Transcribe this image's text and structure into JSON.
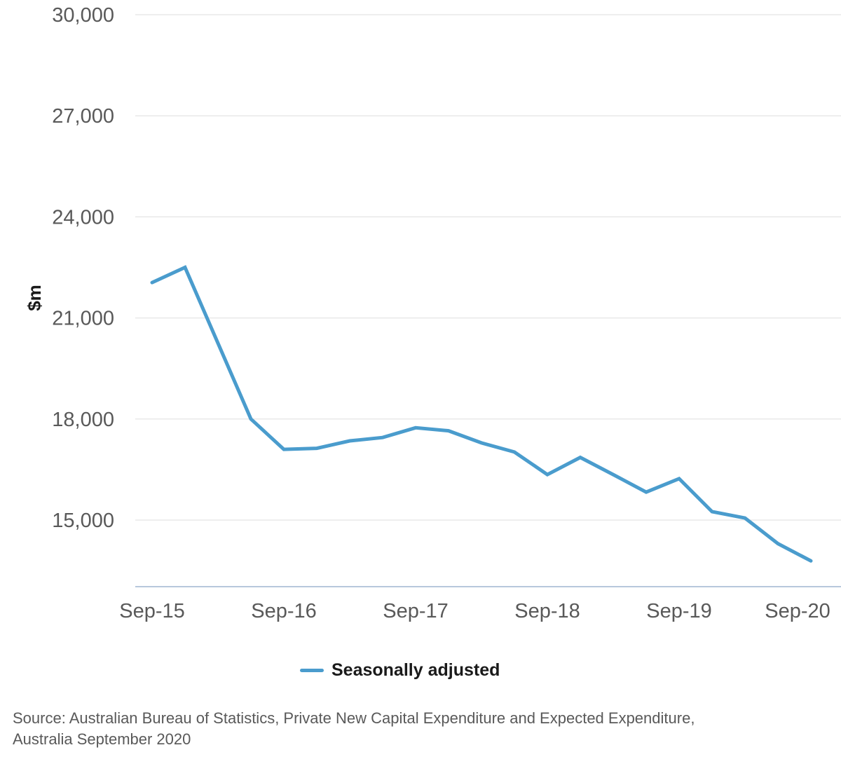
{
  "chart_data": {
    "type": "line",
    "title": "",
    "ylabel": "$m",
    "xlabel": "",
    "x": [
      "Sep-15",
      "Dec-15",
      "Mar-16",
      "Jun-16",
      "Sep-16",
      "Dec-16",
      "Mar-17",
      "Jun-17",
      "Sep-17",
      "Dec-17",
      "Mar-18",
      "Jun-18",
      "Sep-18",
      "Dec-18",
      "Mar-19",
      "Jun-19",
      "Sep-19",
      "Dec-19",
      "Mar-20",
      "Jun-20",
      "Sep-20"
    ],
    "series": [
      {
        "name": "Seasonally adjusted",
        "color": "#4a9ccd",
        "values": [
          22050,
          22500,
          20250,
          18000,
          17100,
          17130,
          17350,
          17450,
          17740,
          17650,
          17290,
          17020,
          16350,
          16860,
          16350,
          15830,
          16230,
          15250,
          15060,
          14300,
          13790
        ]
      }
    ],
    "y_ticks": [
      15000,
      18000,
      21000,
      24000,
      27000,
      30000
    ],
    "ylim": [
      13000,
      30000
    ],
    "x_tick_labels": [
      "Sep-15",
      "Sep-16",
      "Sep-17",
      "Sep-18",
      "Sep-19",
      "Sep-20"
    ],
    "x_tick_every": 4,
    "grid": true,
    "legend_position": "bottom"
  },
  "source": {
    "lines": [
      "Source: Australian Bureau of Statistics, Private New Capital Expenditure and Expected Expenditure,",
      "Australia September 2020"
    ]
  },
  "colors": {
    "line": "#4a9ccd",
    "grid": "#e8e8e8",
    "axis_line": "#b7c8dc",
    "tick_text": "#595959",
    "label_text": "#1a1a1a"
  }
}
